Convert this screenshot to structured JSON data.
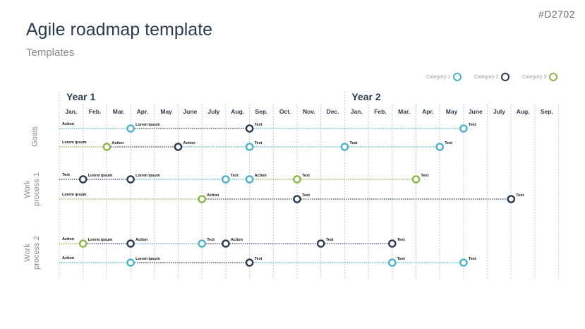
{
  "doc_id": "#D2702",
  "title": "Agile roadmap template",
  "subtitle": "Templates",
  "colors": {
    "category_1": "#4bb3d0",
    "category_2": "#2a3b52",
    "category_3": "#8db646"
  },
  "legend": [
    {
      "label": "Category 1",
      "cat": 1
    },
    {
      "label": "Category 2",
      "cat": 2
    },
    {
      "label": "Category 3",
      "cat": 3
    }
  ],
  "years": [
    {
      "label": "Year 1",
      "start_month_index": 0
    },
    {
      "label": "Year 2",
      "start_month_index": 12
    }
  ],
  "months": [
    "Jan.",
    "Feb.",
    "Mar.",
    "Apr.",
    "May",
    "June",
    "July",
    "Aug.",
    "Sep.",
    "Oct.",
    "Nov.",
    "Dec.",
    "Jan.",
    "Feb.",
    "Mar.",
    "Apr.",
    "May",
    "June",
    "July",
    "Aug.",
    "Sep."
  ],
  "groups": [
    {
      "label_lines": [
        "Goals"
      ],
      "rows": [
        {
          "start_label": "Action",
          "milestones": [
            {
              "pos": 3,
              "cat": 1,
              "label": "Lorem ipsum"
            },
            {
              "pos": 8,
              "cat": 2,
              "label": "Text"
            },
            {
              "pos": 17,
              "cat": 1,
              "label": "Text"
            }
          ]
        },
        {
          "start_label": "Lorem ipsum",
          "milestones": [
            {
              "pos": 2,
              "cat": 3,
              "label": "Action"
            },
            {
              "pos": 5,
              "cat": 2,
              "label": "Action"
            },
            {
              "pos": 8,
              "cat": 1,
              "label": "Text"
            },
            {
              "pos": 12,
              "cat": 1,
              "label": "Text"
            },
            {
              "pos": 16,
              "cat": 1,
              "label": "Text"
            }
          ]
        }
      ]
    },
    {
      "label_lines": [
        "Work",
        "process 1"
      ],
      "rows": [
        {
          "start_label": "Text",
          "milestones": [
            {
              "pos": 1,
              "cat": 2,
              "label": "Lorem ipsum"
            },
            {
              "pos": 3,
              "cat": 2,
              "label": "Lorem ipsum"
            },
            {
              "pos": 7,
              "cat": 1,
              "label": "Text"
            },
            {
              "pos": 8,
              "cat": 1,
              "label": "Action"
            },
            {
              "pos": 10,
              "cat": 3,
              "label": "Text"
            },
            {
              "pos": 15,
              "cat": 3,
              "label": "Text"
            }
          ]
        },
        {
          "start_label": "Lorem ipsum",
          "milestones": [
            {
              "pos": 6,
              "cat": 3,
              "label": "Action"
            },
            {
              "pos": 10,
              "cat": 2,
              "label": "Text"
            },
            {
              "pos": 19,
              "cat": 2,
              "label": "Text"
            }
          ]
        }
      ]
    },
    {
      "label_lines": [
        "Work",
        "process 2"
      ],
      "rows": [
        {
          "start_label": "Action",
          "milestones": [
            {
              "pos": 1,
              "cat": 3,
              "label": "Lorem ipsum"
            },
            {
              "pos": 3,
              "cat": 2,
              "label": "Action"
            },
            {
              "pos": 6,
              "cat": 1,
              "label": "Text"
            },
            {
              "pos": 7,
              "cat": 2,
              "label": "Action"
            },
            {
              "pos": 11,
              "cat": 2,
              "label": "Text"
            },
            {
              "pos": 14,
              "cat": 2,
              "label": "Text"
            }
          ]
        },
        {
          "start_label": "Action",
          "milestones": [
            {
              "pos": 3,
              "cat": 1,
              "label": "Lorem ipsum"
            },
            {
              "pos": 8,
              "cat": 2,
              "label": "Text"
            },
            {
              "pos": 14,
              "cat": 1,
              "label": "Text"
            },
            {
              "pos": 17,
              "cat": 1,
              "label": "Text"
            }
          ]
        }
      ]
    }
  ]
}
